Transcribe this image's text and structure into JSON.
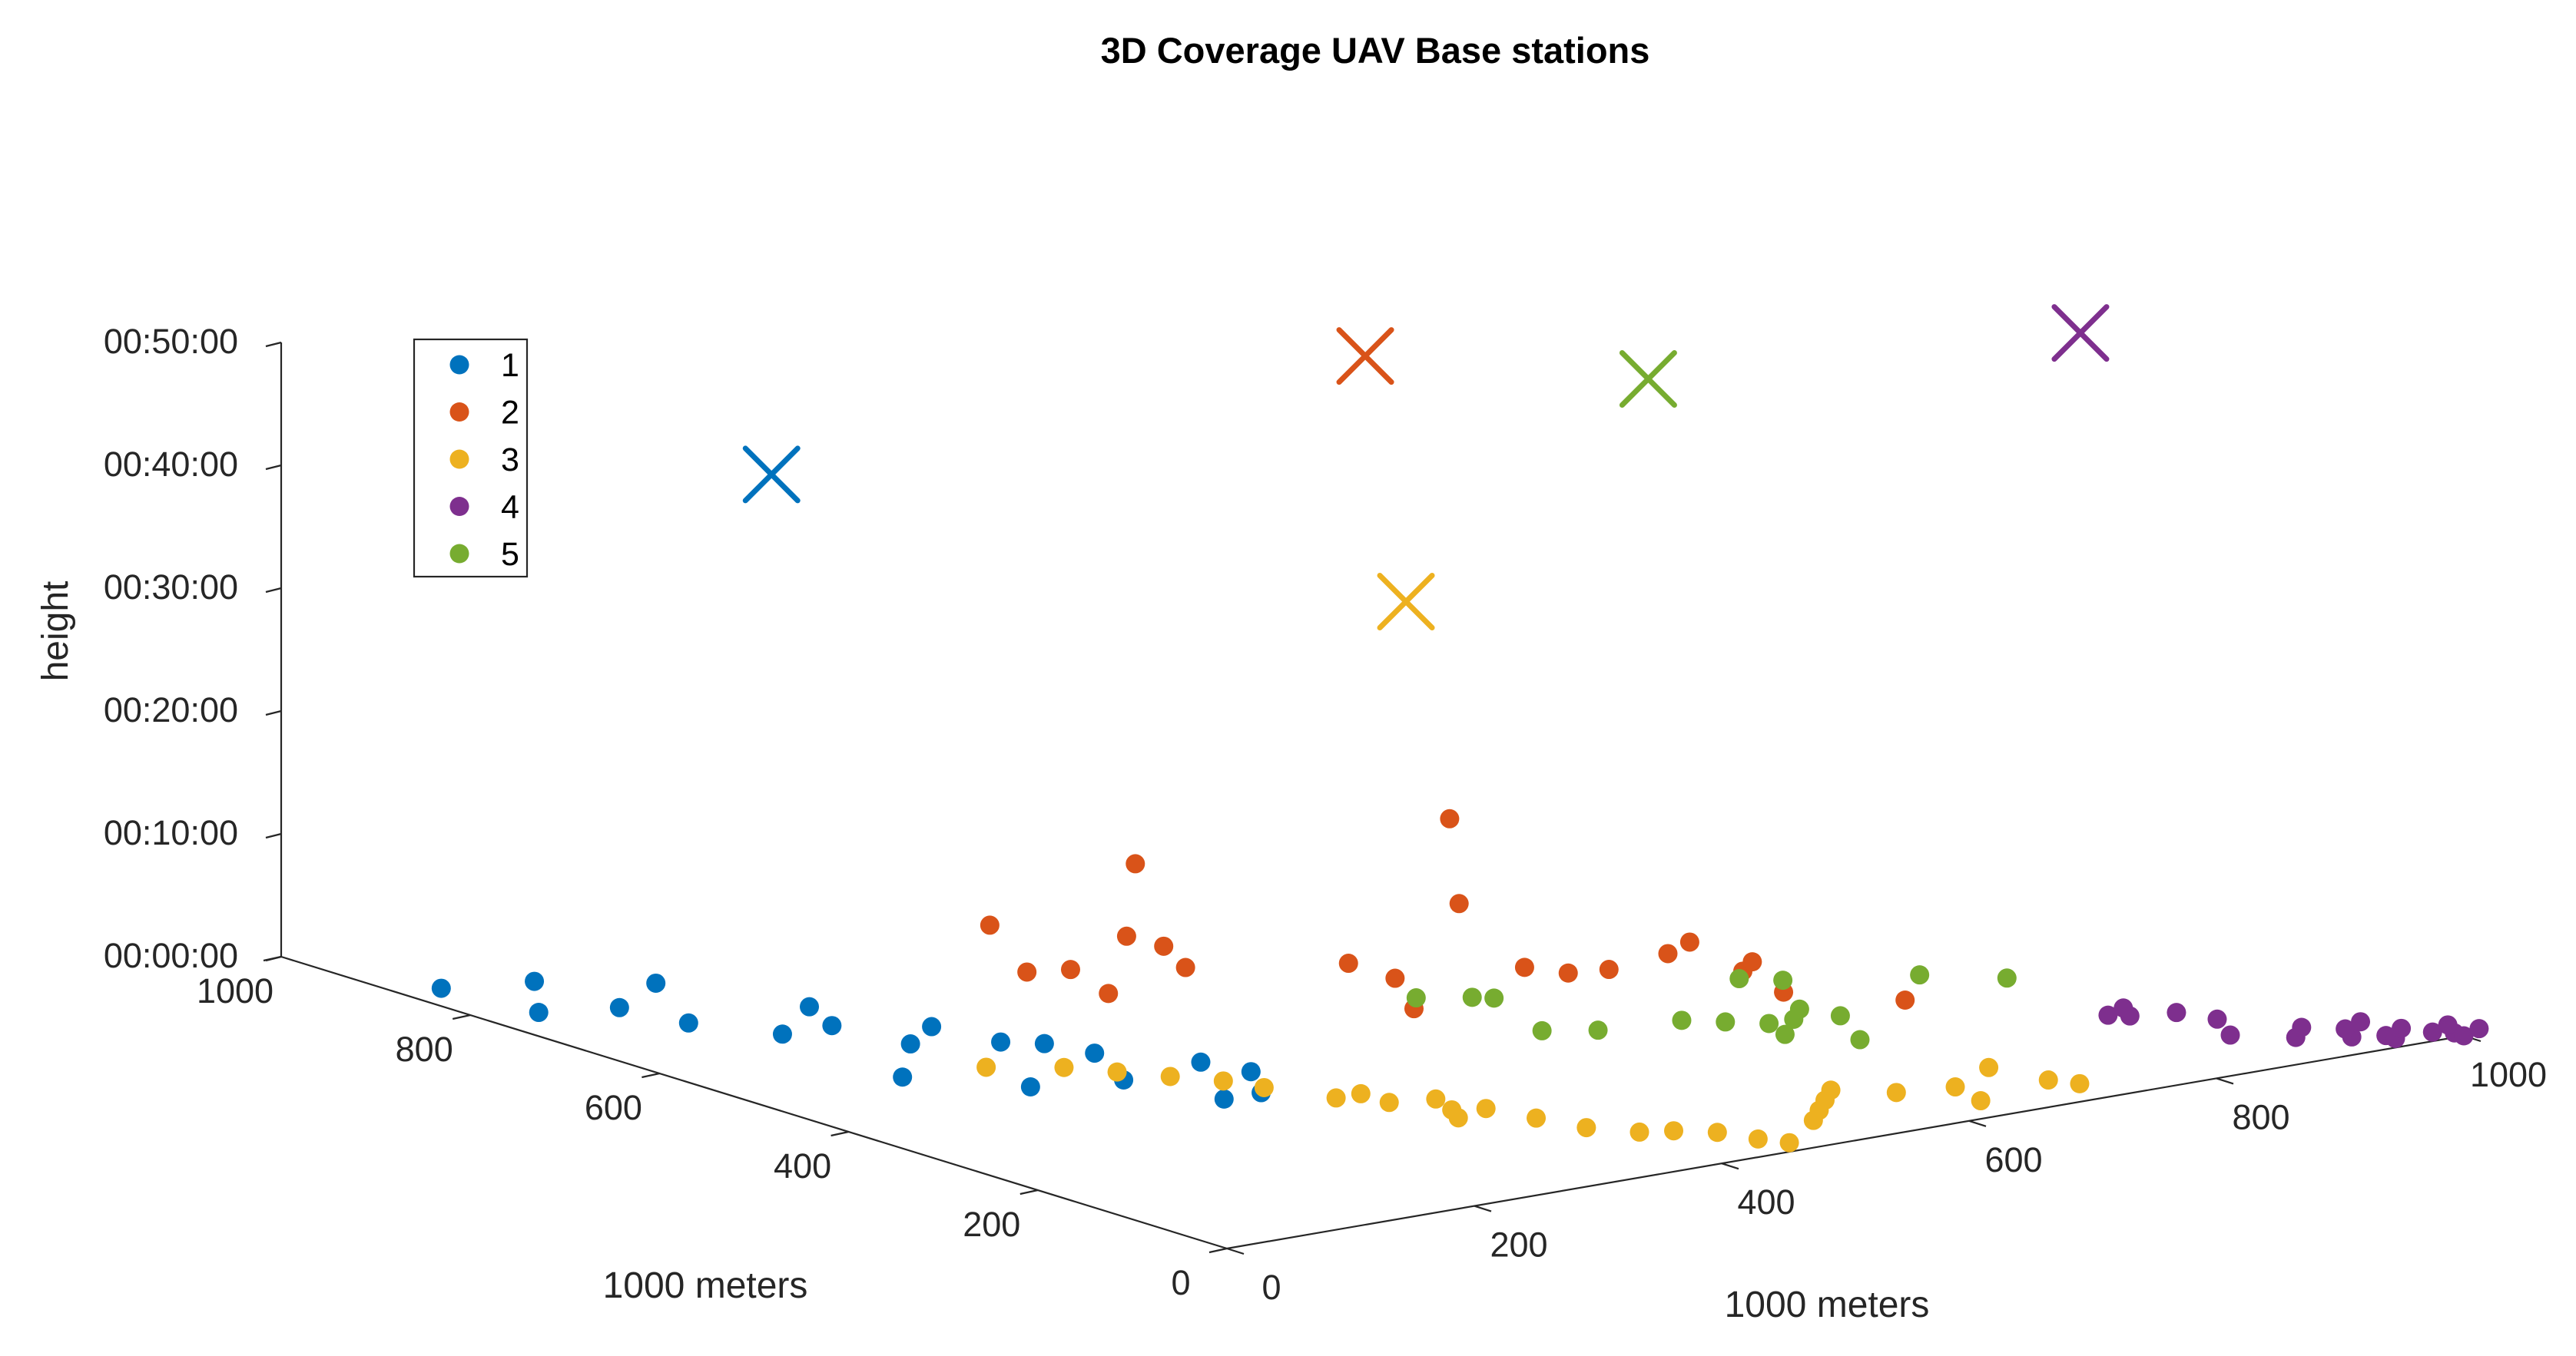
{
  "chart_data": {
    "type": "scatter3d",
    "title": "3D Coverage UAV Base stations",
    "xlabel": "1000 meters",
    "ylabel": "1000 meters",
    "zlabel": "height",
    "xlim": [
      0,
      1000
    ],
    "ylim": [
      0,
      1000
    ],
    "zlim": [
      "00:00:00",
      "00:50:00"
    ],
    "x_ticks": [
      "0",
      "200",
      "400",
      "600",
      "800",
      "1000"
    ],
    "y_ticks": [
      "0",
      "200",
      "400",
      "600",
      "800",
      "1000"
    ],
    "z_ticks": [
      "00:00:00",
      "00:10:00",
      "00:20:00",
      "00:30:00",
      "00:40:00",
      "00:50:00"
    ],
    "legend": {
      "location": "upper-left",
      "entries": [
        "1",
        "2",
        "3",
        "4",
        "5"
      ]
    },
    "series": [
      {
        "name": "1",
        "color": "#0072BD",
        "marker": "filled-circle",
        "points_xyz_secs": [
          [
            30,
            870,
            0
          ],
          [
            90,
            850,
            0
          ],
          [
            40,
            780,
            0
          ],
          [
            90,
            760,
            0
          ],
          [
            150,
            800,
            0
          ],
          [
            100,
            700,
            0
          ],
          [
            130,
            640,
            0
          ],
          [
            190,
            690,
            0
          ],
          [
            170,
            640,
            0
          ],
          [
            220,
            600,
            0
          ],
          [
            180,
            570,
            0
          ],
          [
            230,
            540,
            0
          ],
          [
            250,
            520,
            0
          ],
          [
            260,
            480,
            0
          ],
          [
            230,
            410,
            0
          ],
          [
            300,
            420,
            0
          ],
          [
            310,
            380,
            0
          ],
          [
            250,
            330,
            0
          ],
          [
            280,
            330,
            0
          ],
          [
            170,
            430,
            0
          ],
          [
            120,
            500,
            0
          ]
        ],
        "station_xyz_secs": [
          60,
          560,
          2920
        ]
      },
      {
        "name": "2",
        "color": "#D95319",
        "marker": "filled-circle",
        "points_xyz_secs": [
          [
            290,
            630,
            380
          ],
          [
            320,
            630,
            120
          ],
          [
            340,
            610,
            140
          ],
          [
            340,
            570,
            80
          ],
          [
            370,
            590,
            300
          ],
          [
            400,
            620,
            580
          ],
          [
            400,
            590,
            220
          ],
          [
            410,
            580,
            120
          ],
          [
            450,
            460,
            270
          ],
          [
            480,
            450,
            180
          ],
          [
            480,
            430,
            60
          ],
          [
            570,
            510,
            780
          ],
          [
            570,
            500,
            380
          ],
          [
            600,
            470,
            80
          ],
          [
            620,
            450,
            60
          ],
          [
            630,
            420,
            110
          ],
          [
            670,
            410,
            160
          ],
          [
            680,
            400,
            220
          ],
          [
            700,
            370,
            100
          ],
          [
            700,
            360,
            160
          ],
          [
            710,
            340,
            30
          ],
          [
            770,
            290,
            0
          ]
        ],
        "station_xyz_secs": [
          540,
          560,
          3000
        ]
      },
      {
        "name": "3",
        "color": "#EDB120",
        "marker": "filled-circle",
        "points_xyz_secs": [
          [
            180,
            490,
            0
          ],
          [
            220,
            460,
            0
          ],
          [
            260,
            400,
            0
          ],
          [
            240,
            430,
            0
          ],
          [
            280,
            370,
            0
          ],
          [
            290,
            340,
            0
          ],
          [
            310,
            290,
            0
          ],
          [
            330,
            260,
            0
          ],
          [
            350,
            220,
            0
          ],
          [
            360,
            250,
            0
          ],
          [
            370,
            210,
            0
          ],
          [
            330,
            290,
            0
          ],
          [
            340,
            200,
            0
          ],
          [
            380,
            170,
            0
          ],
          [
            390,
            130,
            0
          ],
          [
            410,
            100,
            0
          ],
          [
            430,
            90,
            0
          ],
          [
            450,
            70,
            0
          ],
          [
            460,
            40,
            0
          ],
          [
            470,
            20,
            0
          ],
          [
            520,
            60,
            0
          ],
          [
            540,
            80,
            0
          ],
          [
            560,
            100,
            0
          ],
          [
            580,
            120,
            0
          ],
          [
            610,
            90,
            0
          ],
          [
            640,
            40,
            0
          ],
          [
            650,
            80,
            0
          ],
          [
            700,
            110,
            0
          ],
          [
            710,
            60,
            0
          ],
          [
            720,
            40,
            0
          ]
        ],
        "station_xyz_secs": [
          420,
          360,
          2210
        ]
      },
      {
        "name": "4",
        "color": "#7E2F8E",
        "marker": "filled-circle",
        "points_xyz_secs": [
          [
            850,
            180,
            0
          ],
          [
            860,
            170,
            0
          ],
          [
            870,
            190,
            0
          ],
          [
            890,
            160,
            0
          ],
          [
            900,
            130,
            0
          ],
          [
            880,
            90,
            0
          ],
          [
            910,
            60,
            0
          ],
          [
            930,
            80,
            0
          ],
          [
            940,
            40,
            0
          ],
          [
            950,
            60,
            0
          ],
          [
            960,
            30,
            0
          ],
          [
            960,
            20,
            0
          ],
          [
            970,
            70,
            0
          ],
          [
            980,
            40,
            0
          ],
          [
            990,
            20,
            0
          ],
          [
            1000,
            10,
            0
          ],
          [
            1010,
            30,
            0
          ],
          [
            1000,
            0,
            0
          ],
          [
            1020,
            10,
            0
          ]
        ],
        "station_xyz_secs": [
          950,
          340,
          3000
        ]
      },
      {
        "name": "5",
        "color": "#77AC30",
        "marker": "filled-circle",
        "points_xyz_secs": [
          [
            520,
            480,
            0
          ],
          [
            550,
            460,
            0
          ],
          [
            560,
            450,
            0
          ],
          [
            530,
            360,
            0
          ],
          [
            560,
            340,
            0
          ],
          [
            620,
            330,
            0
          ],
          [
            640,
            310,
            0
          ],
          [
            660,
            290,
            0
          ],
          [
            650,
            260,
            0
          ],
          [
            680,
            290,
            0
          ],
          [
            700,
            310,
            0
          ],
          [
            710,
            280,
            0
          ],
          [
            680,
            220,
            0
          ],
          [
            720,
            400,
            0
          ],
          [
            740,
            380,
            0
          ],
          [
            820,
            340,
            0
          ],
          [
            860,
            300,
            0
          ]
        ],
        "station_xyz_secs": [
          700,
          470,
          2850
        ]
      }
    ]
  }
}
